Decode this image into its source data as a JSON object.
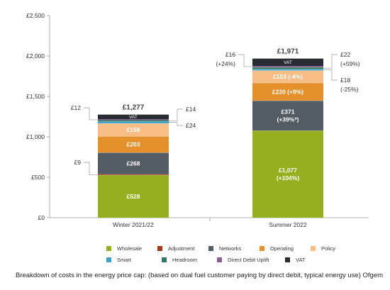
{
  "colors": {
    "Wholesale": "#94b01f",
    "Adjustment": "#a8361d",
    "Networks": "#535b63",
    "Operating": "#e4912c",
    "Policy": "#f8bc85",
    "Smart": "#3ba3c9",
    "Headroom": "#2f7a5c",
    "Direct Debit Uplift": "#8c5e92",
    "VAT": "#272d33"
  },
  "chart_data": {
    "type": "bar",
    "stacked": true,
    "categories": [
      "Winter 2021/22",
      "Summer 2022"
    ],
    "ylim": [
      0,
      2500
    ],
    "yticks": [
      "£0",
      "£500",
      "£1,000",
      "£1,500",
      "£2,000",
      "£2,500"
    ],
    "totals": [
      "£1,277",
      "£1,971"
    ],
    "series": [
      {
        "name": "Wholesale",
        "values": [
          528,
          1077
        ]
      },
      {
        "name": "Adjustment",
        "values": [
          9,
          0
        ]
      },
      {
        "name": "Networks",
        "values": [
          268,
          371
        ]
      },
      {
        "name": "Operating",
        "values": [
          203,
          220
        ]
      },
      {
        "name": "Policy",
        "values": [
          159,
          153
        ]
      },
      {
        "name": "Smart",
        "values": [
          24,
          18
        ]
      },
      {
        "name": "Headroom",
        "values": [
          14,
          22
        ]
      },
      {
        "name": "Direct Debit Uplift",
        "values": [
          12,
          16
        ]
      },
      {
        "name": "VAT",
        "values": [
          61,
          94
        ]
      }
    ],
    "segment_labels": [
      {
        "series": "Wholesale",
        "labels": [
          [
            "£528"
          ],
          [
            "£1,077",
            "(+104%)"
          ]
        ]
      },
      {
        "series": "Networks",
        "labels": [
          [
            "£268"
          ],
          [
            "£371",
            "(+39%*)"
          ]
        ]
      },
      {
        "series": "Operating",
        "labels": [
          [
            "£203"
          ],
          [
            "£220 (+9%)"
          ]
        ]
      },
      {
        "series": "Policy",
        "labels": [
          [
            "£159"
          ],
          [
            "£153 (-4%)"
          ]
        ]
      },
      {
        "series": "VAT",
        "labels": [
          [
            "VAT"
          ],
          [
            "VAT"
          ]
        ]
      }
    ],
    "annotations": [
      {
        "bar": 0,
        "series": "Adjustment",
        "side": "left",
        "lines": [
          "£9"
        ]
      },
      {
        "bar": 0,
        "series": "Direct Debit Uplift",
        "side": "left",
        "lines": [
          "£12"
        ]
      },
      {
        "bar": 0,
        "series": "Headroom",
        "side": "right",
        "lines": [
          "£14"
        ]
      },
      {
        "bar": 0,
        "series": "Smart",
        "side": "right",
        "lines": [
          "£24"
        ]
      },
      {
        "bar": 1,
        "series": "Direct Debit Uplift",
        "side": "left",
        "lines": [
          "£16",
          "(+24%)"
        ]
      },
      {
        "bar": 1,
        "series": "Headroom",
        "side": "right",
        "lines": [
          "£22",
          "(+59%)"
        ]
      },
      {
        "bar": 1,
        "series": "Smart",
        "side": "right",
        "lines": [
          "£18",
          "(-25%)"
        ]
      }
    ],
    "legend_position": "bottom",
    "grid": false
  },
  "legend": {
    "rows": [
      [
        "Wholesale",
        "Adjustment",
        "Networks",
        "Operating",
        "Policy"
      ],
      [
        "Smart",
        "Headroom",
        "Direct Debit Uplift",
        "VAT"
      ]
    ]
  },
  "caption": "Breakdown of costs in the energy price cap: (based on dual fuel customer paying by direct debit, typical energy use) Ofgem"
}
